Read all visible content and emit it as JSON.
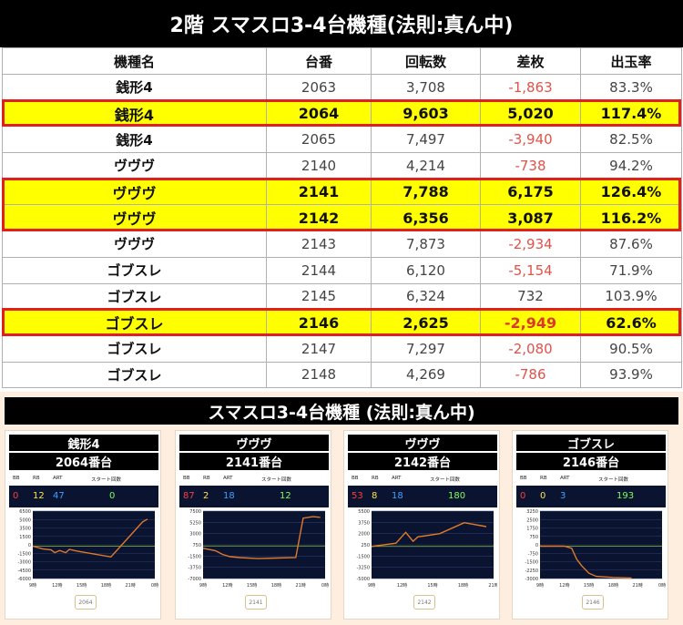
{
  "header": {
    "title": "2階 スマスロ3-4台機種(法則:真ん中)"
  },
  "table": {
    "columns": [
      "機種名",
      "台番",
      "回転数",
      "差枚",
      "出玉率"
    ],
    "rows": [
      {
        "name": "銭形4",
        "num": "2063",
        "spins": "3,708",
        "diff": "-1,863",
        "rate": "83.3%",
        "highlight": false
      },
      {
        "name": "銭形4",
        "num": "2064",
        "spins": "9,603",
        "diff": "5,020",
        "rate": "117.4%",
        "highlight": true
      },
      {
        "name": "銭形4",
        "num": "2065",
        "spins": "7,497",
        "diff": "-3,940",
        "rate": "82.5%",
        "highlight": false
      },
      {
        "name": "ヴヴヴ",
        "num": "2140",
        "spins": "4,214",
        "diff": "-738",
        "rate": "94.2%",
        "highlight": false
      },
      {
        "name": "ヴヴヴ",
        "num": "2141",
        "spins": "7,788",
        "diff": "6,175",
        "rate": "126.4%",
        "highlight": true
      },
      {
        "name": "ヴヴヴ",
        "num": "2142",
        "spins": "6,356",
        "diff": "3,087",
        "rate": "116.2%",
        "highlight": true
      },
      {
        "name": "ヴヴヴ",
        "num": "2143",
        "spins": "7,873",
        "diff": "-2,934",
        "rate": "87.6%",
        "highlight": false
      },
      {
        "name": "ゴブスレ",
        "num": "2144",
        "spins": "6,120",
        "diff": "-5,154",
        "rate": "71.9%",
        "highlight": false
      },
      {
        "name": "ゴブスレ",
        "num": "2145",
        "spins": "6,324",
        "diff": "732",
        "rate": "103.9%",
        "highlight": false
      },
      {
        "name": "ゴブスレ",
        "num": "2146",
        "spins": "2,625",
        "diff": "-2,949",
        "rate": "62.6%",
        "highlight": true
      },
      {
        "name": "ゴブスレ",
        "num": "2147",
        "spins": "7,297",
        "diff": "-2,080",
        "rate": "90.5%",
        "highlight": false
      },
      {
        "name": "ゴブスレ",
        "num": "2148",
        "spins": "4,269",
        "diff": "-786",
        "rate": "93.9%",
        "highlight": false
      }
    ]
  },
  "section2": {
    "title": "スマスロ3-4台機種 (法則:真ん中)"
  },
  "stat_headers": [
    "BB",
    "RB",
    "ART",
    "スタート回数"
  ],
  "colors": {
    "highlight": "#ffff00",
    "highlight_border": "#e0201c",
    "negative": "#e0524a",
    "chart_bg": "#0a1430",
    "chart_line": "#e07a2a",
    "bb": "#ff3b3b",
    "rb": "#ffe24a",
    "art": "#3ea0ff",
    "start": "#7dff5a"
  },
  "chart_data": [
    {
      "type": "line",
      "machine": "銭形4",
      "unit": "2064番台",
      "stats": {
        "BB": "0",
        "RB": "12",
        "ART": "47",
        "start": "0"
      },
      "yticks": [
        "6500",
        "5000",
        "3500",
        "1500",
        "0",
        "-1500",
        "-3000",
        "-4500",
        "-6000"
      ],
      "ylim": [
        -6000,
        6500
      ],
      "xticks": [
        "9時",
        "12時",
        "15時",
        "18時",
        "21時",
        "0時"
      ],
      "x": [
        0,
        0.08,
        0.15,
        0.18,
        0.22,
        0.27,
        0.3,
        0.36,
        0.64,
        0.9,
        0.94
      ],
      "values": [
        0,
        -500,
        -700,
        -1200,
        -800,
        -1200,
        -600,
        -900,
        -2000,
        4500,
        5020
      ],
      "button": "2064"
    },
    {
      "type": "line",
      "machine": "ヴヴヴ",
      "unit": "2141番台",
      "stats": {
        "BB": "87",
        "RB": "2",
        "ART": "18",
        "start": "12"
      },
      "yticks": [
        "7500",
        "5250",
        "3000",
        "750",
        "-1500",
        "-3750",
        "-7000"
      ],
      "ylim": [
        -7000,
        7500
      ],
      "xticks": [
        "9時",
        "12時",
        "15時",
        "18時",
        "21時",
        "0時"
      ],
      "x": [
        0,
        0.1,
        0.16,
        0.22,
        0.3,
        0.45,
        0.6,
        0.76,
        0.82,
        0.9,
        0.96
      ],
      "values": [
        -500,
        -1000,
        -1800,
        -2300,
        -2500,
        -2700,
        -2600,
        -2500,
        6000,
        6300,
        6175
      ],
      "button": "2141"
    },
    {
      "type": "line",
      "machine": "ヴヴヴ",
      "unit": "2142番台",
      "stats": {
        "BB": "53",
        "RB": "8",
        "ART": "18",
        "start": "180"
      },
      "yticks": [
        "5500",
        "3750",
        "2000",
        "250",
        "-1500",
        "-3250",
        "-5000"
      ],
      "ylim": [
        -5000,
        5500
      ],
      "xticks": [
        "9時",
        "12時",
        "15時",
        "18時",
        "21時"
      ],
      "x": [
        0,
        0.2,
        0.28,
        0.34,
        0.38,
        0.42,
        0.56,
        0.76,
        0.94
      ],
      "values": [
        0,
        500,
        2200,
        800,
        1500,
        1600,
        2000,
        3700,
        3087
      ],
      "button": "2142"
    },
    {
      "type": "line",
      "machine": "ゴブスレ",
      "unit": "2146番台",
      "stats": {
        "BB": "0",
        "RB": "0",
        "ART": "3",
        "start": "193"
      },
      "yticks": [
        "3250",
        "2500",
        "1750",
        "750",
        "0",
        "-750",
        "-1500",
        "-2250",
        "-3000"
      ],
      "ylim": [
        -3000,
        3250
      ],
      "xticks": [
        "9時",
        "12時",
        "15時",
        "18時",
        "21時",
        "0時"
      ],
      "x": [
        0,
        0.2,
        0.26,
        0.3,
        0.34,
        0.4,
        0.46,
        0.6,
        0.75
      ],
      "values": [
        0,
        0,
        -200,
        -1200,
        -1800,
        -2500,
        -2800,
        -2900,
        -2949
      ],
      "button": "2146"
    }
  ]
}
